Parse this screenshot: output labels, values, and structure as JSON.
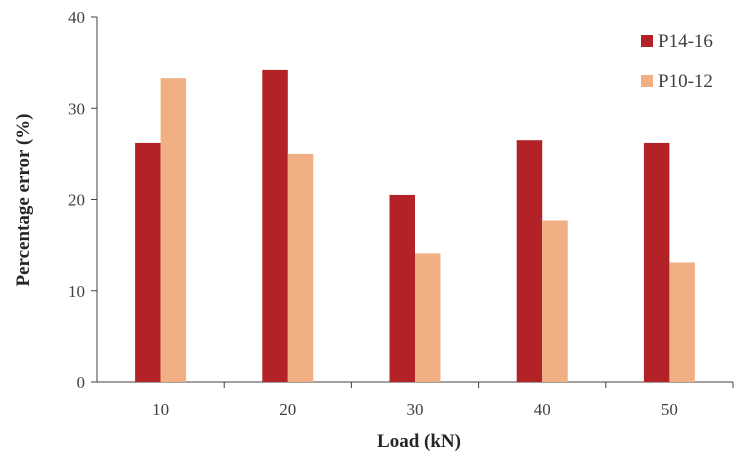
{
  "chart_data": {
    "type": "bar",
    "categories": [
      "10",
      "20",
      "30",
      "40",
      "50"
    ],
    "series": [
      {
        "name": "P14-16",
        "values": [
          26.2,
          34.2,
          20.5,
          26.5,
          26.2
        ],
        "color": "#b22226"
      },
      {
        "name": "P10-12",
        "values": [
          33.3,
          25.0,
          14.1,
          17.7,
          13.1
        ],
        "color": "#f0b084"
      }
    ],
    "xlabel": "Load (kN)",
    "ylabel": "Percentage error (%)",
    "ylim": [
      0,
      40
    ],
    "yticks": [
      0,
      10,
      20,
      30,
      40
    ],
    "grid": false,
    "legend_position": "top-right"
  }
}
